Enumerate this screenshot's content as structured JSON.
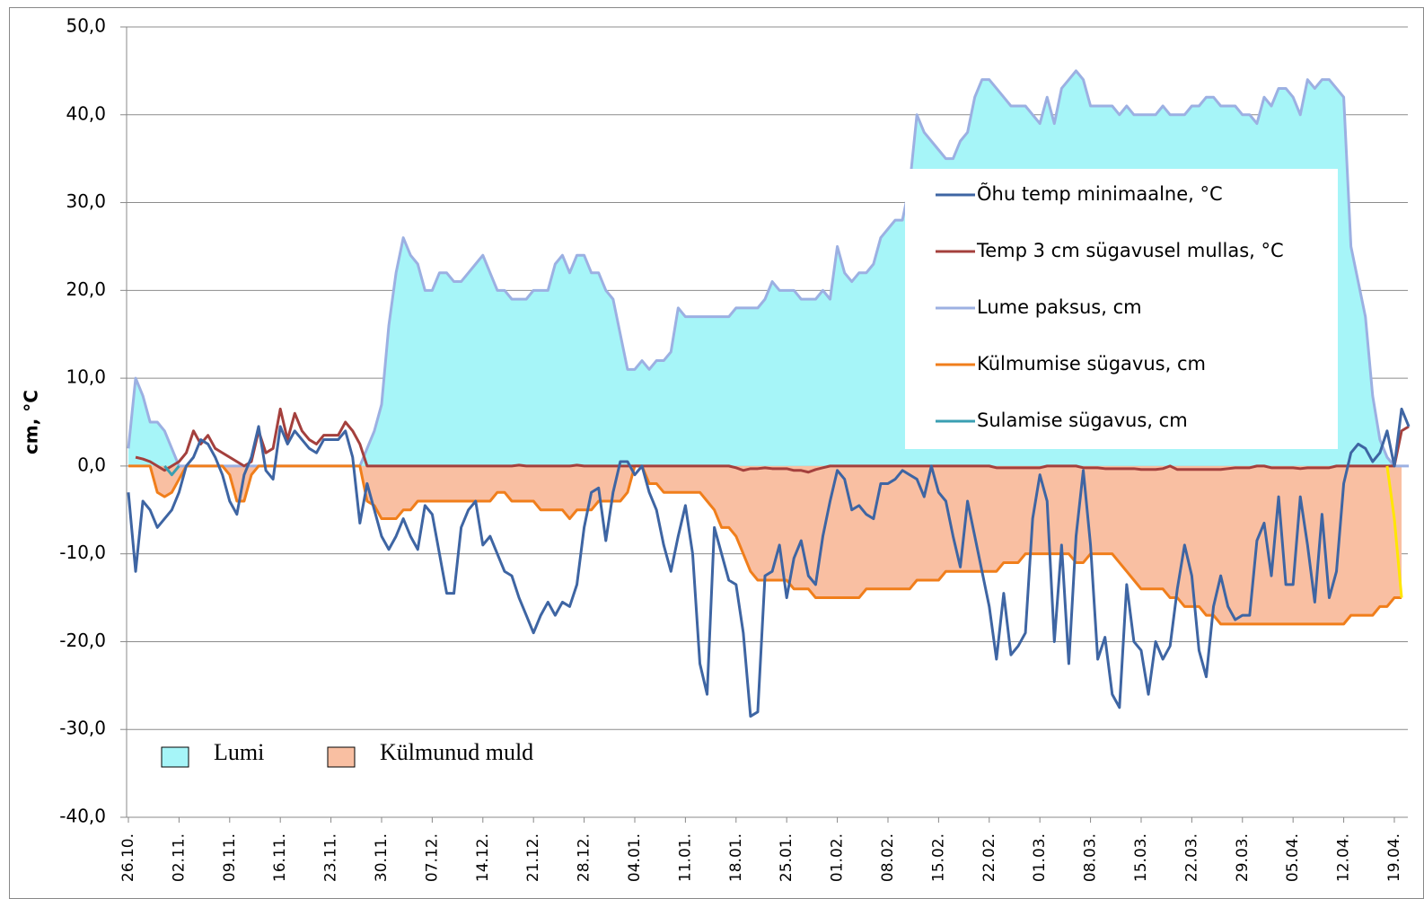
{
  "chart_data": {
    "type": "line",
    "ylabel": "cm, °C",
    "categories": [
      "26.10.",
      null,
      null,
      null,
      null,
      null,
      null,
      "02.11.",
      null,
      null,
      null,
      null,
      null,
      null,
      "09.11.",
      null,
      null,
      null,
      null,
      null,
      null,
      "16.11.",
      null,
      null,
      null,
      null,
      null,
      null,
      "23.11.",
      null,
      null,
      null,
      null,
      null,
      null,
      "30.11.",
      null,
      null,
      null,
      null,
      null,
      null,
      "07.12.",
      null,
      null,
      null,
      null,
      null,
      null,
      "14.12.",
      null,
      null,
      null,
      null,
      null,
      null,
      "21.12.",
      null,
      null,
      null,
      null,
      null,
      null,
      "28.12.",
      null,
      null,
      null,
      null,
      null,
      null,
      "04.01.",
      null,
      null,
      null,
      null,
      null,
      null,
      "11.01.",
      null,
      null,
      null,
      null,
      null,
      null,
      "18.01.",
      null,
      null,
      null,
      null,
      null,
      null,
      "25.01.",
      null,
      null,
      null,
      null,
      null,
      null,
      "01.02.",
      null,
      null,
      null,
      null,
      null,
      null,
      "08.02.",
      null,
      null,
      null,
      null,
      null,
      null,
      "15.02.",
      null,
      null,
      null,
      null,
      null,
      null,
      "22.02.",
      null,
      null,
      null,
      null,
      null,
      null,
      "01.03.",
      null,
      null,
      null,
      null,
      null,
      null,
      "08.03.",
      null,
      null,
      null,
      null,
      null,
      null,
      "15.03.",
      null,
      null,
      null,
      null,
      null,
      null,
      "22.03.",
      null,
      null,
      null,
      null,
      null,
      null,
      "29.03.",
      null,
      null,
      null,
      null,
      null,
      null,
      "05.04.",
      null,
      null,
      null,
      null,
      null,
      null,
      "12.04.",
      null,
      null,
      null,
      null,
      null,
      null,
      "19.04.",
      null,
      null
    ],
    "series": [
      {
        "name": "Lume paksus, cm",
        "color": "#9cb0e2",
        "fill": "#a6f5f8",
        "fill_name": "Lumi",
        "values": [
          2,
          10,
          8,
          5,
          5,
          4,
          2,
          0,
          0,
          0,
          0,
          0,
          0,
          0,
          0,
          0,
          0,
          0,
          0,
          0,
          0,
          0,
          0,
          0,
          0,
          0,
          0,
          0,
          0,
          0,
          0,
          0,
          0,
          2,
          4,
          7,
          16,
          22,
          26,
          24,
          23,
          20,
          20,
          22,
          22,
          21,
          21,
          22,
          23,
          24,
          22,
          20,
          20,
          19,
          19,
          19,
          20,
          20,
          20,
          23,
          24,
          22,
          24,
          24,
          22,
          22,
          20,
          19,
          15,
          11,
          11,
          12,
          11,
          12,
          12,
          13,
          18,
          17,
          17,
          17,
          17,
          17,
          17,
          17,
          18,
          18,
          18,
          18,
          19,
          21,
          20,
          20,
          20,
          19,
          19,
          19,
          20,
          19,
          25,
          22,
          21,
          22,
          22,
          23,
          26,
          27,
          28,
          28,
          32,
          40,
          38,
          37,
          36,
          35,
          35,
          37,
          38,
          42,
          44,
          44,
          43,
          42,
          41,
          41,
          41,
          40,
          39,
          42,
          39,
          43,
          44,
          45,
          44,
          41,
          41,
          41,
          41,
          40,
          41,
          40,
          40,
          40,
          40,
          41,
          40,
          40,
          40,
          41,
          41,
          42,
          42,
          41,
          41,
          41,
          40,
          40,
          39,
          42,
          41,
          43,
          43,
          42,
          40,
          44,
          43,
          44,
          44,
          43,
          42,
          25,
          21,
          17,
          8,
          3,
          1,
          0,
          0,
          0
        ]
      },
      {
        "name": "Külmumise sügavus, cm",
        "color": "#f07e1b",
        "fill": "#f9bfa2",
        "fill_name": "Külmunud muld",
        "values": [
          0,
          0,
          0,
          0,
          -3,
          -3.5,
          -3,
          -1.5,
          0,
          0,
          0,
          0,
          0,
          0,
          -1,
          -4,
          -4,
          -1,
          0,
          0,
          0,
          0,
          0,
          0,
          0,
          0,
          0,
          0,
          0,
          0,
          0,
          0,
          0,
          -4,
          -4.5,
          -6,
          -6,
          -6,
          -5,
          -5,
          -4,
          -4,
          -4,
          -4,
          -4,
          -4,
          -4,
          -4,
          -4,
          -4,
          -4,
          -3,
          -3,
          -4,
          -4,
          -4,
          -4,
          -5,
          -5,
          -5,
          -5,
          -6,
          -5,
          -5,
          -5,
          -4,
          -4,
          -4,
          -4,
          -3,
          0,
          0,
          -2,
          -2,
          -3,
          -3,
          -3,
          -3,
          -3,
          -3,
          -4,
          -5,
          -7,
          -7,
          -8,
          -10,
          -12,
          -13,
          -13,
          -13,
          -13,
          -13,
          -14,
          -14,
          -14,
          -15,
          -15,
          -15,
          -15,
          -15,
          -15,
          -15,
          -14,
          -14,
          -14,
          -14,
          -14,
          -14,
          -14,
          -13,
          -13,
          -13,
          -13,
          -12,
          -12,
          -12,
          -12,
          -12,
          -12,
          -12,
          -12,
          -11,
          -11,
          -11,
          -10,
          -10,
          -10,
          -10,
          -10,
          -10,
          -10,
          -11,
          -11,
          -10,
          -10,
          -10,
          -10,
          -11,
          -12,
          -13,
          -14,
          -14,
          -14,
          -14,
          -15,
          -15,
          -16,
          -16,
          -16,
          -17,
          -17,
          -18,
          -18,
          -18,
          -18,
          -18,
          -18,
          -18,
          -18,
          -18,
          -18,
          -18,
          -18,
          -18,
          -18,
          -18,
          -18,
          -18,
          -18,
          -17,
          -17,
          -17,
          -17,
          -16,
          -16,
          -15,
          -15,
          null
        ]
      },
      {
        "name": "Temp 3 cm sügavusel mullas, °C",
        "color": "#a4403d",
        "values": [
          null,
          1,
          0.8,
          0.5,
          0,
          -0.5,
          0,
          0.5,
          1.5,
          4,
          2.5,
          3.5,
          2,
          1.5,
          1,
          0.5,
          0,
          0.5,
          4,
          1.5,
          2,
          6.5,
          3,
          6,
          4,
          3,
          2.5,
          3.5,
          3.5,
          3.5,
          5,
          4,
          2.5,
          0,
          0,
          0,
          0,
          0,
          0,
          0,
          0,
          0,
          0,
          0,
          0,
          0,
          0,
          0,
          0,
          0,
          0,
          0,
          0,
          0,
          0.1,
          0,
          0,
          0,
          0,
          0,
          0,
          0,
          0.1,
          0,
          0,
          0,
          0,
          0,
          0,
          0,
          0,
          0,
          0,
          0,
          0,
          0,
          0,
          0,
          0,
          0,
          0,
          0,
          0,
          0,
          -0.2,
          -0.5,
          -0.3,
          -0.3,
          -0.2,
          -0.3,
          -0.3,
          -0.3,
          -0.5,
          -0.5,
          -0.7,
          -0.4,
          -0.2,
          0,
          0,
          0,
          0,
          0,
          0,
          0,
          0,
          0,
          0,
          0,
          0,
          0,
          0,
          0,
          0,
          0,
          0,
          0,
          0,
          0,
          0,
          0,
          -0.2,
          -0.2,
          -0.2,
          -0.2,
          -0.2,
          -0.2,
          -0.2,
          0,
          0,
          0,
          0,
          0,
          -0.2,
          -0.2,
          -0.2,
          -0.3,
          -0.3,
          -0.3,
          -0.3,
          -0.3,
          -0.4,
          -0.4,
          -0.4,
          -0.3,
          0,
          -0.4,
          -0.4,
          -0.4,
          -0.4,
          -0.4,
          -0.4,
          -0.4,
          -0.3,
          -0.2,
          -0.2,
          -0.2,
          0,
          0,
          -0.2,
          -0.2,
          -0.2,
          -0.2,
          -0.3,
          -0.2,
          -0.2,
          -0.2,
          -0.2,
          0,
          0,
          0,
          0,
          0,
          0,
          0,
          0,
          0,
          4,
          4.5
        ]
      },
      {
        "name": "Õhu temp minimaalne, °C",
        "color": "#3e65a3",
        "values": [
          -3,
          -12,
          -4,
          -5,
          -7,
          -6,
          -5,
          -3,
          0,
          1,
          3,
          2.5,
          1,
          -1,
          -4,
          -5.5,
          -1,
          1,
          4.5,
          -0.5,
          -1.5,
          4.5,
          2.5,
          4,
          3,
          2,
          1.5,
          3,
          3,
          3,
          4,
          1,
          -6.5,
          -2,
          -5,
          -8,
          -9.5,
          -8,
          -6,
          -8,
          -9.5,
          -4.5,
          -5.5,
          -10,
          -14.5,
          -14.5,
          -7,
          -5,
          -4,
          -9,
          -8,
          -10,
          -12,
          -12.5,
          -15,
          -17,
          -19,
          -17,
          -15.5,
          -17,
          -15.5,
          -16,
          -13.5,
          -7,
          -3,
          -2.5,
          -8.5,
          -3,
          0.5,
          0.5,
          -1,
          0,
          -3,
          -5,
          -9,
          -12,
          -8,
          -4.5,
          -10,
          -22.5,
          -26,
          -7,
          -10,
          -13,
          -13.5,
          -19,
          -28.5,
          -28,
          -12.5,
          -12,
          -9,
          -15,
          -10.5,
          -8.5,
          -12.5,
          -13.5,
          -8,
          -4,
          -0.5,
          -1.5,
          -5,
          -4.5,
          -5.5,
          -6,
          -2,
          -2,
          -1.5,
          -0.5,
          -1,
          -1.5,
          -3.5,
          0,
          -3,
          -4,
          -8,
          -11.5,
          -4,
          -8,
          -12,
          -16,
          -22,
          -14.5,
          -21.5,
          -20.5,
          -19,
          -6,
          -1,
          -4,
          -20,
          -9,
          -22.5,
          -8,
          -0.5,
          -9,
          -22,
          -19.5,
          -26,
          -27.5,
          -13.5,
          -20,
          -21,
          -26,
          -20,
          -22,
          -20.5,
          -14,
          -9,
          -12.5,
          -21,
          -24,
          -16,
          -12.5,
          -16,
          -17.5,
          -17,
          -17,
          -8.5,
          -6.5,
          -12.5,
          -3.5,
          -13.5,
          -13.5,
          -3.5,
          -9,
          -15.5,
          -5.5,
          -15,
          -12,
          -2,
          1.5,
          2.5,
          2,
          0.5,
          1.5,
          4,
          0,
          6.5,
          4.5
        ]
      },
      {
        "name": "Sulamise sügavus, cm",
        "color": "#3a9fb2",
        "values": [
          null,
          null,
          null,
          null,
          null,
          0,
          -1,
          0,
          null,
          null,
          null,
          null,
          null,
          null,
          null,
          null,
          null,
          null,
          null,
          null,
          null,
          null,
          null,
          null,
          null,
          null,
          null,
          null,
          null,
          null,
          null,
          null,
          null,
          null,
          null,
          null,
          null,
          null,
          null,
          null,
          null,
          null,
          null,
          null,
          null,
          null,
          null,
          null,
          null,
          null,
          null,
          null,
          null,
          null,
          null,
          null,
          null,
          null,
          null,
          null,
          null,
          null,
          null,
          null,
          null,
          null,
          null,
          null,
          null,
          null,
          null,
          null,
          null,
          null,
          null,
          null,
          null,
          null,
          null,
          null,
          null,
          null,
          null,
          null,
          null,
          null,
          null,
          null,
          null,
          null,
          null,
          null,
          null,
          null,
          null,
          null,
          null,
          null,
          null,
          null,
          null,
          null,
          null,
          null,
          null,
          null,
          null,
          null,
          null,
          null,
          null,
          null,
          null,
          null,
          null,
          null,
          null,
          null,
          null,
          null,
          null,
          null,
          null,
          null,
          null,
          null,
          null,
          null,
          null,
          null,
          null,
          null,
          null,
          null,
          null,
          null,
          null,
          null,
          null,
          null,
          null,
          null,
          null,
          null,
          null,
          null,
          null,
          null,
          null,
          null,
          null,
          null,
          null,
          null,
          null,
          null,
          null,
          null,
          null,
          null,
          null,
          null,
          null,
          null,
          null,
          null,
          null,
          null,
          null,
          null,
          null,
          null,
          null,
          null,
          null,
          null,
          null,
          null
        ]
      },
      {
        "color": "#ffe600",
        "values": [
          null,
          null,
          null,
          null,
          null,
          null,
          null,
          null,
          null,
          null,
          null,
          null,
          null,
          null,
          null,
          null,
          null,
          null,
          null,
          null,
          null,
          null,
          null,
          null,
          null,
          null,
          null,
          null,
          null,
          null,
          null,
          null,
          null,
          null,
          null,
          null,
          null,
          null,
          null,
          null,
          null,
          null,
          null,
          null,
          null,
          null,
          null,
          null,
          null,
          null,
          null,
          null,
          null,
          null,
          null,
          null,
          null,
          null,
          null,
          null,
          null,
          null,
          null,
          null,
          null,
          null,
          null,
          null,
          null,
          null,
          null,
          null,
          null,
          null,
          null,
          null,
          null,
          null,
          null,
          null,
          null,
          null,
          null,
          null,
          null,
          null,
          null,
          null,
          null,
          null,
          null,
          null,
          null,
          null,
          null,
          null,
          null,
          null,
          null,
          null,
          null,
          null,
          null,
          null,
          null,
          null,
          null,
          null,
          null,
          null,
          null,
          null,
          null,
          null,
          null,
          null,
          null,
          null,
          null,
          null,
          null,
          null,
          null,
          null,
          null,
          null,
          null,
          null,
          null,
          null,
          null,
          null,
          null,
          null,
          null,
          null,
          null,
          null,
          null,
          null,
          null,
          null,
          null,
          null,
          null,
          null,
          null,
          null,
          null,
          null,
          null,
          null,
          null,
          null,
          null,
          null,
          null,
          null,
          null,
          null,
          null,
          null,
          null,
          null,
          null,
          null,
          null,
          null,
          null,
          null,
          null,
          null,
          null,
          null,
          0,
          -6,
          -15,
          null
        ]
      }
    ],
    "legend_order": [
      3,
      2,
      0,
      1,
      4
    ],
    "ylim": [
      -40,
      50
    ],
    "yticks": [
      {
        "value": -40,
        "label": "-40,0"
      },
      {
        "value": -30,
        "label": "-30,0"
      },
      {
        "value": -20,
        "label": "-20,0"
      },
      {
        "value": -10,
        "label": "-10,0"
      },
      {
        "value": 0,
        "label": "0,0"
      },
      {
        "value": 10,
        "label": "10,0"
      },
      {
        "value": 20,
        "label": "20,0"
      },
      {
        "value": 30,
        "label": "30,0"
      },
      {
        "value": 40,
        "label": "40,0"
      },
      {
        "value": 50,
        "label": "50,0"
      }
    ],
    "grid": true
  }
}
